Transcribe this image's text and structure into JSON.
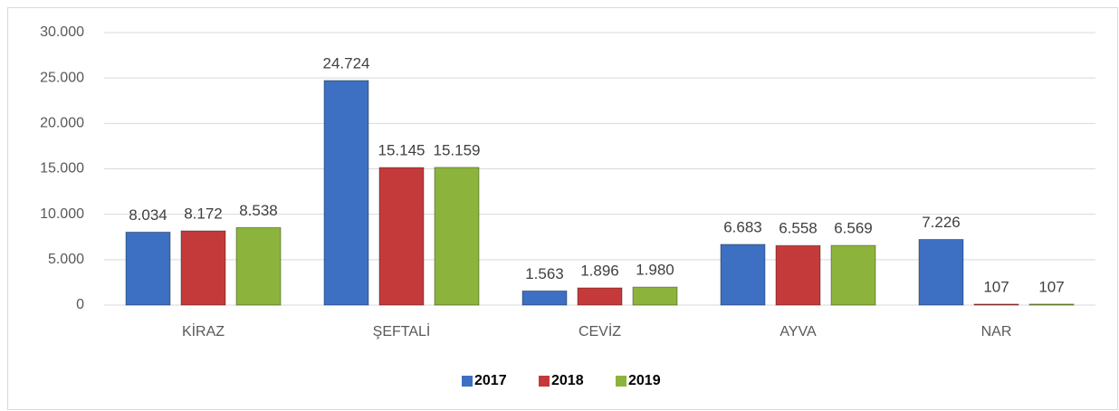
{
  "chart_data": {
    "type": "bar",
    "categories": [
      "KİRAZ",
      "ŞEFTALİ",
      "CEVİZ",
      "AYVA",
      "NAR"
    ],
    "series": [
      {
        "name": "2017",
        "color": "#3d6fc2",
        "values": [
          8034,
          24724,
          1563,
          6683,
          7226
        ],
        "value_labels": [
          "8.034",
          "24.724",
          "1.563",
          "6.683",
          "7.226"
        ]
      },
      {
        "name": "2018",
        "color": "#c43a3a",
        "values": [
          8172,
          15145,
          1896,
          6558,
          107
        ],
        "value_labels": [
          "8.172",
          "15.145",
          "1.896",
          "6.558",
          "107"
        ]
      },
      {
        "name": "2019",
        "color": "#8cb43c",
        "values": [
          8538,
          15159,
          1980,
          6569,
          107
        ],
        "value_labels": [
          "8.538",
          "15.159",
          "1.980",
          "6.569",
          "107"
        ]
      }
    ],
    "ylim": [
      0,
      30000
    ],
    "yticks": [
      0,
      {
        "value": 5000,
        "label": "5.000"
      },
      {
        "value": 10000,
        "label": "10.000"
      },
      {
        "value": 15000,
        "label": "15.000"
      },
      {
        "value": 20000,
        "label": "20.000"
      },
      {
        "value": 25000,
        "label": "25.000"
      },
      {
        "value": 30000,
        "label": "30.000"
      }
    ],
    "grid": true,
    "legend": "bottom"
  }
}
